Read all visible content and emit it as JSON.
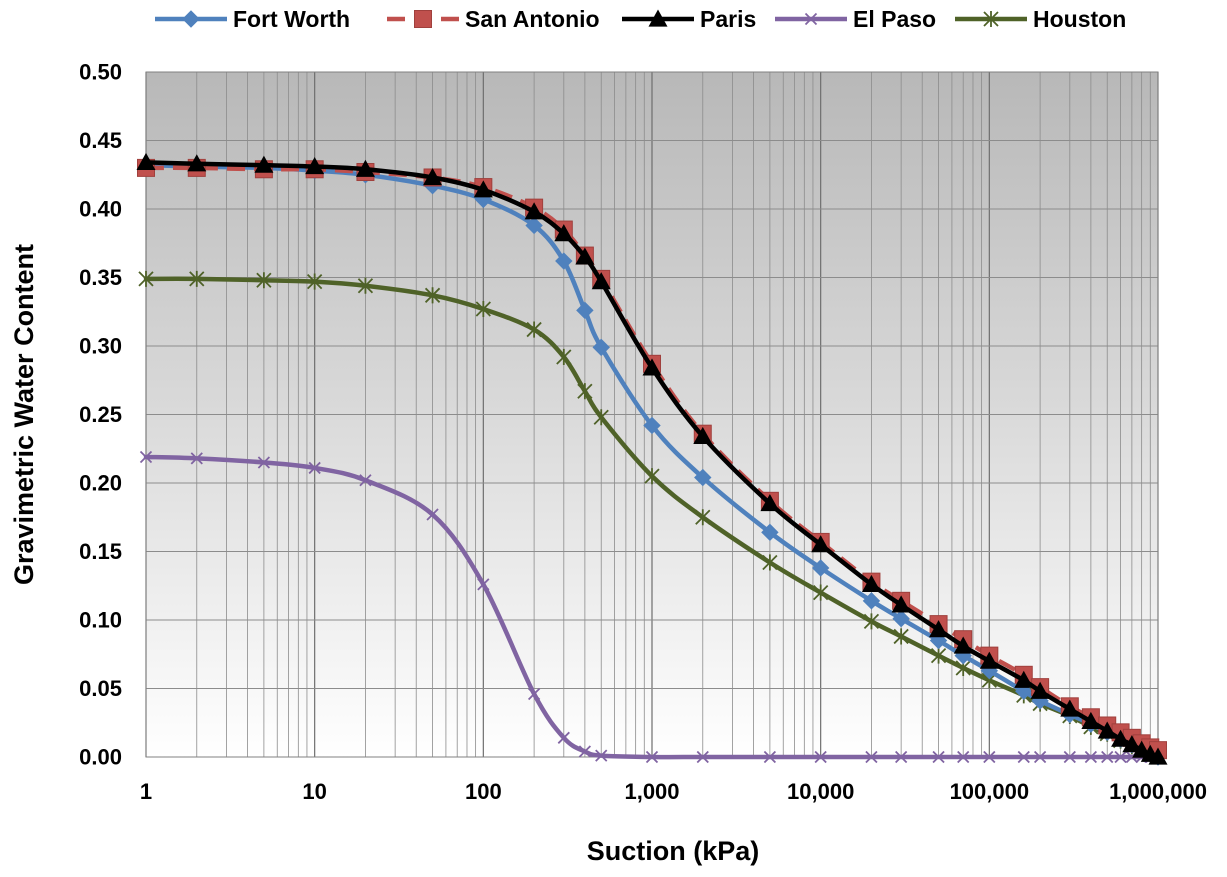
{
  "chart_data": {
    "type": "line",
    "title": "",
    "xlabel": "Suction (kPa)",
    "ylabel": "Gravimetric Water Content",
    "xscale": "log",
    "xlim": [
      1,
      1000000
    ],
    "ylim": [
      0,
      0.5
    ],
    "x_ticks": [
      1,
      10,
      100,
      1000,
      10000,
      100000,
      1000000
    ],
    "x_tick_labels": [
      "1",
      "10",
      "100",
      "1,000",
      "10,000",
      "100,000",
      "1,000,000"
    ],
    "y_ticks": [
      0,
      0.05,
      0.1,
      0.15,
      0.2,
      0.25,
      0.3,
      0.35,
      0.4,
      0.45,
      0.5
    ],
    "y_tick_labels": [
      "0.00",
      "0.05",
      "0.10",
      "0.15",
      "0.20",
      "0.25",
      "0.30",
      "0.35",
      "0.40",
      "0.45",
      "0.50"
    ],
    "grid": true,
    "legend_position": "top",
    "x": [
      1,
      2,
      5,
      10,
      20,
      50,
      100,
      200,
      300,
      400,
      500,
      1000,
      2000,
      5000,
      10000,
      20000,
      30000,
      50000,
      70000,
      100000,
      160000,
      200000,
      300000,
      400000,
      500000,
      600000,
      700000,
      800000,
      900000,
      1000000
    ],
    "series": [
      {
        "name": "Fort Worth",
        "color": "#4F81BD",
        "marker": "diamond",
        "dash": "solid",
        "values": [
          0.432,
          0.431,
          0.43,
          0.428,
          0.425,
          0.417,
          0.407,
          0.388,
          0.362,
          0.326,
          0.299,
          0.242,
          0.204,
          0.164,
          0.138,
          0.114,
          0.101,
          0.085,
          0.074,
          0.063,
          0.048,
          0.041,
          0.031,
          0.024,
          0.018,
          0.013,
          0.009,
          0.006,
          0.003,
          0.0
        ]
      },
      {
        "name": "San Antonio",
        "color": "#C0504D",
        "marker": "square",
        "dash": "dash",
        "values": [
          0.43,
          0.43,
          0.429,
          0.429,
          0.427,
          0.423,
          0.416,
          0.401,
          0.385,
          0.366,
          0.349,
          0.287,
          0.236,
          0.187,
          0.157,
          0.128,
          0.114,
          0.097,
          0.086,
          0.074,
          0.06,
          0.051,
          0.037,
          0.029,
          0.023,
          0.018,
          0.014,
          0.01,
          0.007,
          0.005
        ]
      },
      {
        "name": "Paris",
        "color": "#000000",
        "marker": "triangle",
        "dash": "solid",
        "values": [
          0.434,
          0.433,
          0.432,
          0.431,
          0.429,
          0.423,
          0.414,
          0.398,
          0.382,
          0.365,
          0.347,
          0.284,
          0.234,
          0.185,
          0.155,
          0.126,
          0.111,
          0.093,
          0.081,
          0.07,
          0.056,
          0.048,
          0.035,
          0.026,
          0.019,
          0.013,
          0.009,
          0.005,
          0.002,
          0.0
        ]
      },
      {
        "name": "El Paso",
        "color": "#8064A2",
        "marker": "x",
        "dash": "solid",
        "values": [
          0.219,
          0.218,
          0.215,
          0.211,
          0.202,
          0.177,
          0.126,
          0.046,
          0.014,
          0.004,
          0.001,
          0.0,
          0.0,
          0.0,
          0.0,
          0.0,
          0.0,
          0.0,
          0.0,
          0.0,
          0.0,
          0.0,
          0.0,
          0.0,
          0.0,
          0.0,
          0.0,
          0.0,
          0.0,
          0.0
        ]
      },
      {
        "name": "Houston",
        "color": "#4F6228",
        "marker": "star",
        "dash": "solid",
        "values": [
          0.349,
          0.349,
          0.348,
          0.347,
          0.344,
          0.337,
          0.327,
          0.312,
          0.292,
          0.267,
          0.248,
          0.205,
          0.175,
          0.142,
          0.12,
          0.099,
          0.088,
          0.074,
          0.065,
          0.056,
          0.045,
          0.039,
          0.03,
          0.022,
          0.017,
          0.012,
          0.008,
          0.005,
          0.002,
          0.0
        ]
      }
    ]
  }
}
